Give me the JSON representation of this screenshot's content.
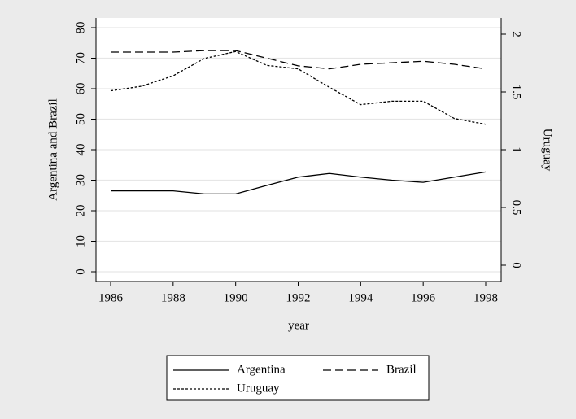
{
  "chart_data": {
    "type": "line",
    "x": [
      1986,
      1987,
      1988,
      1989,
      1990,
      1991,
      1992,
      1993,
      1994,
      1995,
      1996,
      1997,
      1998
    ],
    "series": [
      {
        "name": "Argentina",
        "color": "#000000",
        "line_style": "solid",
        "axis": "y",
        "values": [
          26.5,
          26.5,
          26.5,
          25.5,
          25.5,
          28.3,
          31,
          32.2,
          31,
          30,
          29.3,
          31,
          32.7
        ]
      },
      {
        "name": "Brazil",
        "color": "#000000",
        "line_style": "dashed",
        "axis": "y",
        "values": [
          72,
          72,
          72,
          72.5,
          72.5,
          70,
          67.5,
          66.5,
          68,
          68.5,
          69,
          68,
          66.5
        ]
      },
      {
        "name": "Uruguay",
        "color": "#000000",
        "line_style": "dotted",
        "axis": "y2",
        "values": [
          1.51,
          1.55,
          1.64,
          1.79,
          1.85,
          1.73,
          1.7,
          1.54,
          1.39,
          1.42,
          1.42,
          1.27,
          1.22
        ]
      }
    ],
    "xlabel": "year",
    "ylabel": "Argentina and Brazil",
    "y2label": "Uruguay",
    "xlim": [
      1986,
      1998
    ],
    "xticks": [
      1986,
      1988,
      1990,
      1992,
      1994,
      1996,
      1998
    ],
    "ylim": [
      0,
      80
    ],
    "yticks": [
      0,
      10,
      20,
      30,
      40,
      50,
      60,
      70,
      80
    ],
    "y2lim": [
      0,
      2
    ],
    "y2ticks": [
      0,
      0.5,
      1,
      1.5,
      2
    ],
    "grid": true,
    "legend": "bottom"
  }
}
